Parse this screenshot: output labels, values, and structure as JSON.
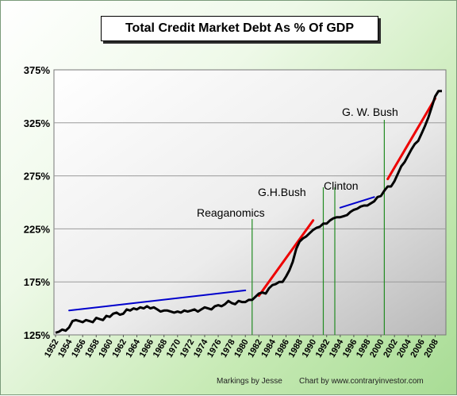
{
  "chart_data": {
    "type": "line",
    "title": "Total Credit Market Debt As % Of GDP",
    "xlabel": "",
    "ylabel": "",
    "ylim": [
      125,
      375
    ],
    "xlim": [
      1952,
      2009
    ],
    "grid": true,
    "y_ticks": [
      "125%",
      "175%",
      "225%",
      "275%",
      "325%",
      "375%"
    ],
    "y_tick_values": [
      125,
      175,
      225,
      275,
      325,
      375
    ],
    "x_ticks": [
      "1952",
      "1954",
      "1956",
      "1958",
      "1960",
      "1962",
      "1964",
      "1966",
      "1968",
      "1970",
      "1972",
      "1974",
      "1976",
      "1978",
      "1980",
      "1982",
      "1984",
      "1986",
      "1988",
      "1990",
      "1992",
      "1994",
      "1996",
      "1998",
      "2000",
      "2002",
      "2004",
      "2006",
      "2008"
    ],
    "series": [
      {
        "values": [
          [
            1952.0,
            127
          ],
          [
            1952.5,
            128
          ],
          [
            1953.0,
            130
          ],
          [
            1953.5,
            129
          ],
          [
            1954.0,
            132
          ],
          [
            1954.5,
            138
          ],
          [
            1955.0,
            139
          ],
          [
            1955.5,
            138
          ],
          [
            1956.0,
            137
          ],
          [
            1956.5,
            139
          ],
          [
            1957.0,
            138
          ],
          [
            1957.5,
            137
          ],
          [
            1958.0,
            141
          ],
          [
            1958.5,
            140
          ],
          [
            1959.0,
            139
          ],
          [
            1959.5,
            143
          ],
          [
            1960.0,
            142
          ],
          [
            1960.5,
            145
          ],
          [
            1961.0,
            146
          ],
          [
            1961.5,
            144
          ],
          [
            1962.0,
            145
          ],
          [
            1962.5,
            149
          ],
          [
            1963.0,
            148
          ],
          [
            1963.5,
            150
          ],
          [
            1964.0,
            149
          ],
          [
            1964.5,
            151
          ],
          [
            1965.0,
            150
          ],
          [
            1965.5,
            152
          ],
          [
            1966.0,
            150
          ],
          [
            1966.5,
            151
          ],
          [
            1967.0,
            149
          ],
          [
            1967.5,
            147
          ],
          [
            1968.0,
            148
          ],
          [
            1968.5,
            148
          ],
          [
            1969.0,
            147
          ],
          [
            1969.5,
            146
          ],
          [
            1970.0,
            147
          ],
          [
            1970.5,
            146
          ],
          [
            1971.0,
            148
          ],
          [
            1971.5,
            147
          ],
          [
            1972.0,
            148
          ],
          [
            1972.5,
            149
          ],
          [
            1973.0,
            147
          ],
          [
            1973.5,
            149
          ],
          [
            1974.0,
            151
          ],
          [
            1974.5,
            150
          ],
          [
            1975.0,
            149
          ],
          [
            1975.5,
            152
          ],
          [
            1976.0,
            153
          ],
          [
            1976.5,
            152
          ],
          [
            1977.0,
            154
          ],
          [
            1977.5,
            157
          ],
          [
            1978.0,
            155
          ],
          [
            1978.5,
            154
          ],
          [
            1979.0,
            157
          ],
          [
            1979.5,
            156
          ],
          [
            1980.0,
            156
          ],
          [
            1980.5,
            158
          ],
          [
            1981.0,
            158
          ],
          [
            1981.5,
            161
          ],
          [
            1982.0,
            164
          ],
          [
            1982.5,
            165
          ],
          [
            1983.0,
            164
          ],
          [
            1983.5,
            169
          ],
          [
            1984.0,
            172
          ],
          [
            1984.5,
            173
          ],
          [
            1985.0,
            175
          ],
          [
            1985.5,
            175
          ],
          [
            1986.0,
            180
          ],
          [
            1986.5,
            186
          ],
          [
            1987.0,
            194
          ],
          [
            1987.5,
            206
          ],
          [
            1988.0,
            213
          ],
          [
            1988.5,
            216
          ],
          [
            1989.0,
            218
          ],
          [
            1989.5,
            221
          ],
          [
            1990.0,
            224
          ],
          [
            1990.5,
            226
          ],
          [
            1991.0,
            227
          ],
          [
            1991.5,
            230
          ],
          [
            1992.0,
            230
          ],
          [
            1992.5,
            233
          ],
          [
            1993.0,
            235
          ],
          [
            1993.5,
            236
          ],
          [
            1994.0,
            236
          ],
          [
            1994.5,
            237
          ],
          [
            1995.0,
            238
          ],
          [
            1995.5,
            241
          ],
          [
            1996.0,
            243
          ],
          [
            1996.5,
            244
          ],
          [
            1997.0,
            246
          ],
          [
            1997.5,
            247
          ],
          [
            1998.0,
            247
          ],
          [
            1998.5,
            249
          ],
          [
            1999.0,
            251
          ],
          [
            1999.5,
            255
          ],
          [
            2000.0,
            256
          ],
          [
            2000.5,
            261
          ],
          [
            2001.0,
            265
          ],
          [
            2001.5,
            265
          ],
          [
            2002.0,
            270
          ],
          [
            2002.5,
            277
          ],
          [
            2003.0,
            284
          ],
          [
            2003.5,
            288
          ],
          [
            2004.0,
            294
          ],
          [
            2004.5,
            300
          ],
          [
            2005.0,
            305
          ],
          [
            2005.5,
            308
          ],
          [
            2006.0,
            315
          ],
          [
            2006.5,
            322
          ],
          [
            2007.0,
            330
          ],
          [
            2007.5,
            340
          ],
          [
            2008.0,
            350
          ],
          [
            2008.5,
            355
          ],
          [
            2009.0,
            355
          ]
        ]
      }
    ],
    "annotations": [
      {
        "label": "Reaganomics",
        "year": 1981
      },
      {
        "label": "G.H.Bush",
        "year": 1989
      },
      {
        "label": "Clinton",
        "year": 1993
      },
      {
        "label": "G. W. Bush",
        "year": 2001
      }
    ],
    "trend_lines": [
      {
        "color": "#0000cc",
        "from": [
          1954,
          148
        ],
        "to": [
          1980,
          167
        ]
      },
      {
        "color": "#ee0000",
        "from": [
          1982,
          162
        ],
        "to": [
          1990,
          233
        ]
      },
      {
        "color": "#0000cc",
        "from": [
          1994,
          245
        ],
        "to": [
          1999,
          255
        ]
      },
      {
        "color": "#ee0000",
        "from": [
          2001,
          272
        ],
        "to": [
          2008,
          348
        ]
      }
    ]
  },
  "footer": {
    "markings": "Markings by Jesse",
    "credit": "Chart by www.contraryinvestor.com"
  },
  "colors": {
    "data_line": "#000000",
    "blue_trend": "#0000cc",
    "red_trend": "#ee0000",
    "marker_line": "#228b22"
  }
}
